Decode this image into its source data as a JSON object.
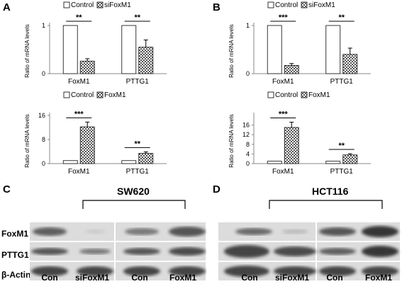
{
  "panels": {
    "A": {
      "label": "A"
    },
    "B": {
      "label": "B"
    },
    "C": {
      "label": "C",
      "cell_line": "SW620",
      "lanes": [
        "Con",
        "siFoxM1",
        "Con",
        "FoxM1"
      ],
      "proteins": [
        "FoxM1",
        "PTTG1",
        "β-Actin"
      ]
    },
    "D": {
      "label": "D",
      "cell_line": "HCT116",
      "lanes": [
        "Con",
        "siFoxM1",
        "Con",
        "FoxM1"
      ],
      "proteins": [
        "FoxM1",
        "PTTG1",
        "β-Actin"
      ]
    }
  },
  "chart_data": [
    {
      "id": "A-top",
      "type": "bar",
      "ylabel": "Ratio of mRNA levels",
      "categories": [
        "FoxM1",
        "PTTG1"
      ],
      "ylim": [
        0,
        1
      ],
      "yticks": [
        0,
        1
      ],
      "series": [
        {
          "name": "Control",
          "values": [
            1.0,
            1.0
          ],
          "errors": [
            0,
            0
          ]
        },
        {
          "name": "siFoxM1",
          "values": [
            0.26,
            0.55
          ],
          "errors": [
            0.05,
            0.15
          ]
        }
      ],
      "significance": [
        "**",
        "**"
      ]
    },
    {
      "id": "A-bottom",
      "type": "bar",
      "ylabel": "Ratio of mRNA levels",
      "categories": [
        "FoxM1",
        "PTTG1"
      ],
      "ylim": [
        0,
        16
      ],
      "yticks": [
        0,
        8,
        16
      ],
      "series": [
        {
          "name": "Control",
          "values": [
            1.0,
            1.0
          ],
          "errors": [
            0,
            0
          ]
        },
        {
          "name": "FoxM1",
          "values": [
            12.2,
            3.4
          ],
          "errors": [
            1.6,
            0.5
          ]
        }
      ],
      "significance": [
        "***",
        "**"
      ]
    },
    {
      "id": "B-top",
      "type": "bar",
      "ylabel": "Ratio of mRNA levels",
      "categories": [
        "FoxM1",
        "PTTG1"
      ],
      "ylim": [
        0,
        1
      ],
      "yticks": [
        0,
        1
      ],
      "series": [
        {
          "name": "Control",
          "values": [
            1.0,
            1.0
          ],
          "errors": [
            0,
            0
          ]
        },
        {
          "name": "siFoxM1",
          "values": [
            0.17,
            0.4
          ],
          "errors": [
            0.04,
            0.13
          ]
        }
      ],
      "significance": [
        "***",
        "**"
      ]
    },
    {
      "id": "B-bottom",
      "type": "bar",
      "ylabel": "Ratio of mRNA levels",
      "categories": [
        "FoxM1",
        "PTTG1"
      ],
      "ylim": [
        0,
        20
      ],
      "yticks": [
        0,
        4,
        8,
        12,
        16
      ],
      "series": [
        {
          "name": "Control",
          "values": [
            1.0,
            1.0
          ],
          "errors": [
            0,
            0
          ]
        },
        {
          "name": "FoxM1",
          "values": [
            15.0,
            3.6
          ],
          "errors": [
            2.2,
            0.5
          ]
        }
      ],
      "significance": [
        "***",
        "**"
      ]
    }
  ]
}
